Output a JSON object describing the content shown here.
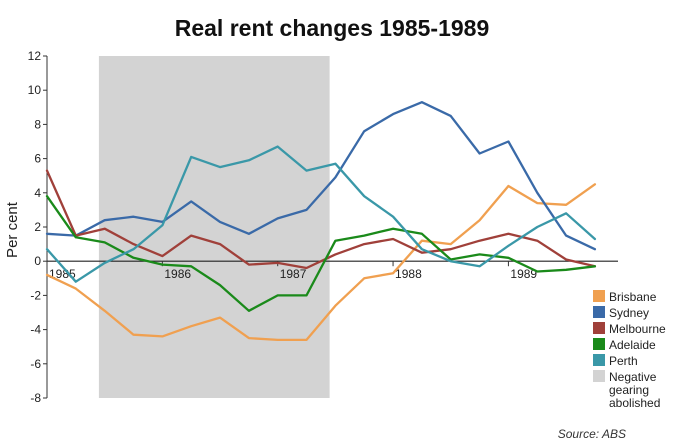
{
  "chart_data": {
    "type": "line",
    "title": "Real rent changes 1985-1989",
    "ylabel": "Per cent",
    "xlabel": "",
    "source": "Source: ABS",
    "ylim": [
      -8,
      12
    ],
    "yticks": [
      -8,
      -6,
      -4,
      -2,
      0,
      2,
      4,
      6,
      8,
      10,
      12
    ],
    "xlim": [
      1985,
      1989.95
    ],
    "xticks": [
      1985,
      1986,
      1987,
      1988,
      1989
    ],
    "xtick_labels": [
      "1985",
      "1986",
      "1987",
      "1988",
      "1989"
    ],
    "x": [
      1985.0,
      1985.25,
      1985.5,
      1985.75,
      1986.0,
      1986.25,
      1986.5,
      1986.75,
      1987.0,
      1987.25,
      1987.5,
      1987.75,
      1988.0,
      1988.25,
      1988.5,
      1988.75,
      1989.0,
      1989.25,
      1989.5,
      1989.75
    ],
    "shaded_region": {
      "start": 1985.45,
      "end": 1987.45,
      "label": "Negative gearing abolished",
      "color": "#d3d3d3"
    },
    "series": [
      {
        "name": "Brisbane",
        "color": "#f0a050",
        "values": [
          -0.8,
          -1.6,
          -2.9,
          -4.3,
          -4.4,
          -3.8,
          -3.3,
          -4.5,
          -4.6,
          -4.6,
          -2.6,
          -1.0,
          -0.7,
          1.2,
          1.0,
          2.4,
          4.4,
          3.4,
          3.3,
          4.5
        ]
      },
      {
        "name": "Sydney",
        "color": "#3a6aa8",
        "values": [
          1.6,
          1.5,
          2.4,
          2.6,
          2.3,
          3.5,
          2.3,
          1.6,
          2.5,
          3.0,
          4.9,
          7.6,
          8.6,
          9.3,
          8.5,
          6.3,
          7.0,
          4.0,
          1.5,
          0.7
        ]
      },
      {
        "name": "Melbourne",
        "color": "#a0403a",
        "values": [
          5.3,
          1.5,
          1.9,
          1.0,
          0.3,
          1.5,
          1.0,
          -0.2,
          -0.1,
          -0.4,
          0.4,
          1.0,
          1.3,
          0.5,
          0.7,
          1.2,
          1.6,
          1.2,
          0.1,
          -0.3
        ]
      },
      {
        "name": "Adelaide",
        "color": "#1a8a1a",
        "values": [
          3.8,
          1.4,
          1.1,
          0.2,
          -0.2,
          -0.3,
          -1.4,
          -2.9,
          -2.0,
          -2.0,
          1.2,
          1.5,
          1.9,
          1.6,
          0.1,
          0.4,
          0.2,
          -0.6,
          -0.5,
          -0.3
        ]
      },
      {
        "name": "Perth",
        "color": "#3a98a8",
        "values": [
          0.7,
          -1.2,
          -0.1,
          0.7,
          2.1,
          6.1,
          5.5,
          5.9,
          6.7,
          5.3,
          5.7,
          3.8,
          2.6,
          0.7,
          0.0,
          -0.3,
          0.9,
          2.0,
          2.8,
          1.3
        ]
      }
    ],
    "legend": {
      "position": "right-bottom"
    }
  }
}
